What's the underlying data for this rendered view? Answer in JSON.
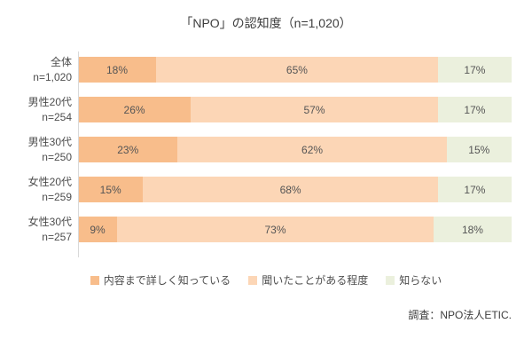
{
  "chart_data": {
    "type": "bar",
    "variant": "stacked-horizontal",
    "title": "「NPO」の認知度（n=1,020）",
    "categories": [
      {
        "label": "全体",
        "n": "n=1,020"
      },
      {
        "label": "男性20代",
        "n": "n=254"
      },
      {
        "label": "男性30代",
        "n": "n=250"
      },
      {
        "label": "女性20代",
        "n": "n=259"
      },
      {
        "label": "女性30代",
        "n": "n=257"
      }
    ],
    "series": [
      {
        "name": "内容まで詳しく知っている",
        "color": "#f8bd8b",
        "values": [
          18,
          26,
          23,
          15,
          9
        ]
      },
      {
        "name": "聞いたことがある程度",
        "color": "#fcd6b6",
        "values": [
          65,
          57,
          62,
          68,
          73
        ]
      },
      {
        "name": "知らない",
        "color": "#ebf0dd",
        "values": [
          17,
          17,
          15,
          17,
          18
        ]
      }
    ],
    "value_suffix": "%",
    "xlim": [
      0,
      100
    ],
    "grid": false,
    "legend_position": "bottom",
    "source": "調査：NPO法人ETIC."
  },
  "colors": {
    "axis_line": "#d9d9d9",
    "label_text": "#4d4d4d",
    "title_text": "#3d3d3d"
  }
}
